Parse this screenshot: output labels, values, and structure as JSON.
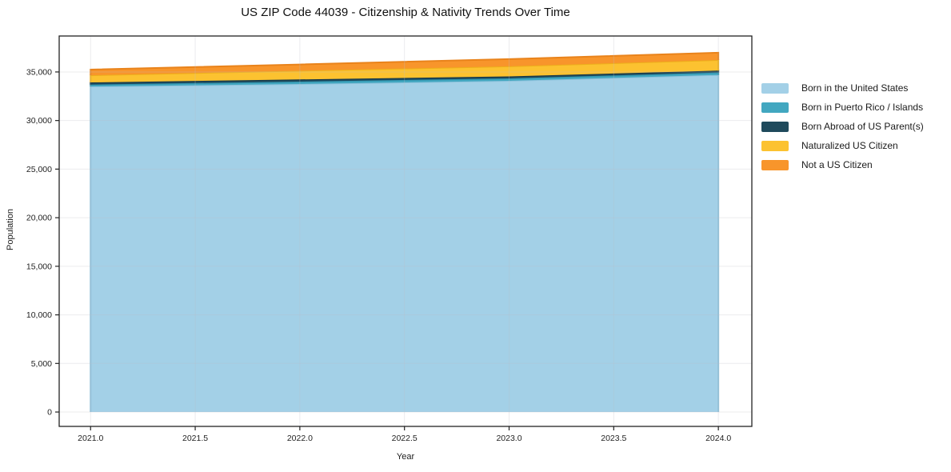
{
  "page": {
    "title": "US ZIP Code 44039 - Citizenship & Nativity Trends Over Time"
  },
  "chart_data": {
    "type": "area",
    "stacked": true,
    "title": "US ZIP Code 44039 - Citizenship & Nativity Trends Over Time",
    "xlabel": "Year",
    "ylabel": "Population",
    "x": [
      2021,
      2022,
      2023,
      2024
    ],
    "series": [
      {
        "name": "Born in the United States",
        "color": "#a3d0e7",
        "line_color": "#8ec2dc",
        "values": [
          33500,
          33760,
          34090,
          34690
        ]
      },
      {
        "name": "Born in Puerto Rico / Islands",
        "color": "#42a7c0",
        "line_color": "#2f93ae",
        "values": [
          200,
          250,
          250,
          250
        ]
      },
      {
        "name": "Born Abroad of US Parent(s)",
        "color": "#1f4a5c",
        "line_color": "#16384a",
        "values": [
          220,
          220,
          200,
          200
        ]
      },
      {
        "name": "Naturalized US Citizen",
        "color": "#fcc230",
        "line_color": "#edaf1b",
        "values": [
          740,
          900,
          1040,
          1090
        ]
      },
      {
        "name": "Not a US Citizen",
        "color": "#f8952b",
        "line_color": "#e9831b",
        "values": [
          580,
          640,
          745,
          750
        ]
      }
    ],
    "totals": [
      35240,
      35770,
      36325,
      36980
    ],
    "xticks": [
      {
        "v": 2021.0,
        "label": "2021.0"
      },
      {
        "v": 2021.5,
        "label": "2021.5"
      },
      {
        "v": 2022.0,
        "label": "2022.0"
      },
      {
        "v": 2022.5,
        "label": "2022.5"
      },
      {
        "v": 2023.0,
        "label": "2023.0"
      },
      {
        "v": 2023.5,
        "label": "2023.5"
      },
      {
        "v": 2024.0,
        "label": "2024.0"
      }
    ],
    "yticks": [
      {
        "v": 0,
        "label": "0"
      },
      {
        "v": 5000,
        "label": "5,000"
      },
      {
        "v": 10000,
        "label": "10,000"
      },
      {
        "v": 15000,
        "label": "15,000"
      },
      {
        "v": 20000,
        "label": "20,000"
      },
      {
        "v": 25000,
        "label": "25,000"
      },
      {
        "v": 30000,
        "label": "30,000"
      },
      {
        "v": 35000,
        "label": "35,000"
      }
    ],
    "xlim": [
      2020.85,
      2024.16
    ],
    "ylim": [
      -1480,
      38700
    ],
    "grid": true,
    "grid_color": "rgba(190,190,200,0.30)",
    "spine_color": "#222222",
    "legend_position": "right-outside"
  }
}
